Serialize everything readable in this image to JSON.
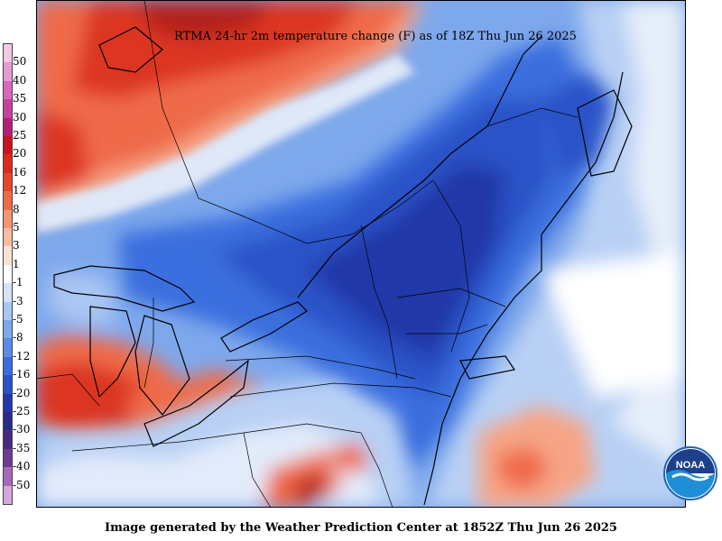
{
  "title": "RTMA 24-hr 2m temperature change (F) as of 18Z Thu Jun 26 2025",
  "footer": "Image generated by the Weather Prediction Center at 1852Z Thu Jun 26 2025",
  "logo": {
    "text": "NOAA",
    "icon": "noaa-logo-icon"
  },
  "legend": {
    "labels": [
      "50",
      "40",
      "35",
      "30",
      "25",
      "20",
      "16",
      "12",
      "8",
      "5",
      "3",
      "1",
      "-1",
      "-3",
      "-5",
      "-8",
      "-12",
      "-16",
      "-20",
      "-25",
      "-30",
      "-35",
      "-40",
      "-50"
    ],
    "colors": [
      "#f6c8e6",
      "#e69ad2",
      "#d868be",
      "#c8409e",
      "#b41e78",
      "#c8141c",
      "#dc2a1c",
      "#e8442a",
      "#f06a46",
      "#f69472",
      "#fabca0",
      "#fde2d2",
      "#ffffff",
      "#d6e2f8",
      "#aac6f2",
      "#7ea8ec",
      "#5a8ce6",
      "#3a6ede",
      "#2a52c8",
      "#2238a8",
      "#2c2a88",
      "#4a2a80",
      "#6e3a92",
      "#a86ab8",
      "#d4a8da"
    ]
  },
  "colors": {
    "warm_strong": "#dc3420",
    "warm": "#ef6a4a",
    "warm_light": "#f7a486",
    "neutral": "#ffffff",
    "cool_light": "#b8d0f4",
    "cool": "#5a8ce6",
    "cool_strong": "#2a52c8",
    "cool_deep": "#1e3a9a"
  }
}
